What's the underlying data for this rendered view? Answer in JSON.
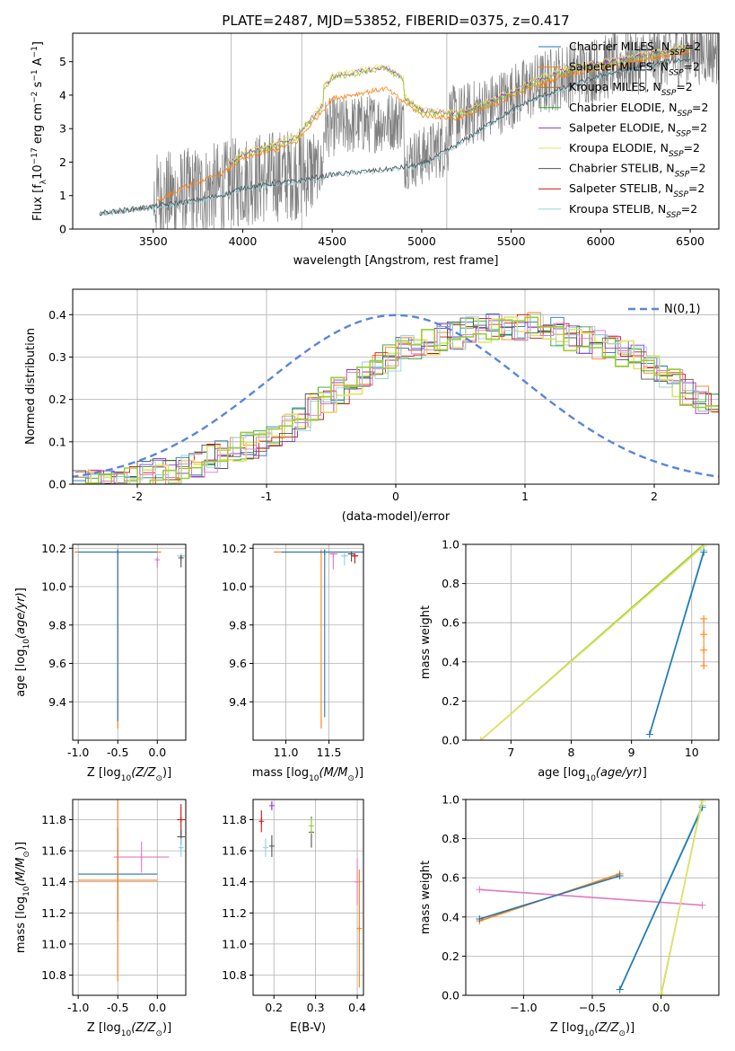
{
  "figure": {
    "title": "PLATE=2487, MJD=53852, FIBERID=0375, z=0.417"
  },
  "series_names": [
    "Chabrier MILES",
    "Salpeter MILES",
    "Kroupa MILES",
    "Chabrier ELODIE",
    "Salpeter ELODIE",
    "Kroupa ELODIE",
    "Chabrier STELIB",
    "Salpeter STELIB",
    "Kroupa STELIB"
  ],
  "series_colors": [
    "#1f77b4",
    "#ff7f0e",
    "#bf6f1f",
    "#2ca02c",
    "#9932cc",
    "#e2e26a",
    "#555555",
    "#c81414",
    "#8fd3e0"
  ],
  "legend_suffix": "N",
  "legend_sub": "SSP",
  "legend_value": "=2",
  "chart_data": [
    {
      "type": "line",
      "panel": "spectrum",
      "title": "PLATE=2487, MJD=53852, FIBERID=0375, z=0.417",
      "xlabel": "wavelength [Angstrom, rest frame]",
      "ylabel_main": "Flux [f",
      "ylabel_rest": "10",
      "ylabel_units": "erg cm",
      "xlim": [
        3050,
        6660
      ],
      "ylim": [
        0,
        5.85
      ],
      "xticks": [
        3500,
        4000,
        4500,
        5000,
        5500,
        6000,
        6500
      ],
      "yticks": [
        0,
        1,
        2,
        3,
        4,
        5
      ],
      "data_color": "#808080",
      "model_levels": {
        "x": [
          3200,
          3500,
          3700,
          3900,
          4000,
          4200,
          4300,
          4500,
          4800,
          5000,
          5200,
          5400,
          5600,
          5800,
          6000,
          6200,
          6400,
          6500
        ],
        "smooth": [
          0.45,
          0.65,
          0.8,
          1.0,
          1.2,
          1.35,
          1.4,
          1.6,
          1.75,
          1.9,
          2.5,
          3.2,
          3.8,
          4.2,
          4.55,
          4.8,
          5.0,
          5.05
        ],
        "old": [
          null,
          0.8,
          1.3,
          1.7,
          2.1,
          2.4,
          2.6,
          3.9,
          4.2,
          3.4,
          3.3,
          3.7,
          4.2,
          4.6,
          4.8,
          5.0,
          5.2,
          5.3
        ]
      },
      "legend_position": "top-right"
    },
    {
      "type": "step",
      "panel": "residuals",
      "xlabel": "(data-model)/error",
      "ylabel": "Normed distribution",
      "xlim": [
        -2.5,
        2.5
      ],
      "ylim": [
        0,
        0.46
      ],
      "xticks": [
        -2,
        -1,
        0,
        1,
        2
      ],
      "yticks": [
        0.0,
        0.1,
        0.2,
        0.3,
        0.4
      ],
      "gaussian_label": "N(0,1)",
      "legend_position": "top-right",
      "bin_start": -2.5,
      "bin_width": 0.1,
      "profile": [
        0.0,
        0.0,
        0.01,
        0.01,
        0.02,
        0.02,
        0.03,
        0.03,
        0.04,
        0.05,
        0.06,
        0.07,
        0.08,
        0.09,
        0.1,
        0.11,
        0.13,
        0.16,
        0.18,
        0.2,
        0.22,
        0.24,
        0.26,
        0.28,
        0.3,
        0.32,
        0.33,
        0.34,
        0.35,
        0.35,
        0.36,
        0.36,
        0.37,
        0.37,
        0.37,
        0.37,
        0.36,
        0.36,
        0.35,
        0.34,
        0.33,
        0.32,
        0.31,
        0.3,
        0.28,
        0.26,
        0.24,
        0.22,
        0.2,
        0.18
      ]
    },
    {
      "type": "errorbar",
      "panel": "age-vs-Z",
      "xlabel": "Z [log",
      "ylabel": "age  [log",
      "xlim": [
        -1.07,
        0.36
      ],
      "ylim": [
        9.2,
        10.22
      ],
      "xticks": [
        -1.0,
        -0.5,
        0.0
      ],
      "yticks": [
        9.4,
        9.6,
        9.8,
        10.0,
        10.2
      ],
      "points": [
        {
          "x": -0.5,
          "y": 10.18,
          "xerr": 0.55,
          "yerr_low": 0.92,
          "color": "#ff7f0e"
        },
        {
          "x": -0.5,
          "y": 10.18,
          "xerr": 0.5,
          "yerr_low": 0.88,
          "color": "#1f77b4"
        },
        {
          "x": 0.0,
          "y": 10.14,
          "xerr": 0.02,
          "yerr_low": 0.04,
          "color": "#e377c2"
        },
        {
          "x": 0.3,
          "y": 10.16,
          "xerr": 0.05,
          "yerr_low": 0.04,
          "color": "#8fd3e0"
        },
        {
          "x": 0.3,
          "y": 10.15,
          "xerr": 0.03,
          "yerr_low": 0.05,
          "color": "#555555"
        }
      ]
    },
    {
      "type": "errorbar",
      "panel": "age-vs-mass",
      "xlabel": "mass [log",
      "xlim": [
        10.62,
        11.9
      ],
      "ylim": [
        9.2,
        10.22
      ],
      "xticks": [
        11.0,
        11.5
      ],
      "yticks": [
        9.4,
        9.6,
        9.8,
        10.0,
        10.2
      ],
      "points": [
        {
          "x": 11.41,
          "y": 10.18,
          "xerr": 0.55,
          "yerr_low": 0.92,
          "color": "#ff7f0e"
        },
        {
          "x": 11.45,
          "y": 10.18,
          "xerr": 0.5,
          "yerr_low": 0.86,
          "color": "#1f77b4"
        },
        {
          "x": 11.55,
          "y": 10.17,
          "xerr": 0.05,
          "yerr_low": 0.08,
          "color": "#e377c2"
        },
        {
          "x": 11.68,
          "y": 10.16,
          "xerr": 0.04,
          "yerr_low": 0.05,
          "color": "#8fd3e0"
        },
        {
          "x": 11.8,
          "y": 10.16,
          "xerr": 0.04,
          "yerr_low": 0.04,
          "color": "#c81414"
        },
        {
          "x": 11.76,
          "y": 10.17,
          "xerr": 0.04,
          "yerr_low": 0.04,
          "color": "#555555"
        }
      ]
    },
    {
      "type": "line",
      "panel": "weight-vs-age",
      "xlabel": "age  [log",
      "ylabel": "mass weight",
      "xlim": [
        6.25,
        10.45
      ],
      "ylim": [
        0,
        1.0
      ],
      "xticks": [
        7,
        8,
        9,
        10
      ],
      "yticks": [
        0.0,
        0.2,
        0.4,
        0.6,
        0.8,
        1.0
      ],
      "lines": [
        {
          "x": [
            6.5,
            10.2
          ],
          "y": [
            0.0,
            1.0
          ],
          "color": "#9acd32"
        },
        {
          "x": [
            6.5,
            10.2
          ],
          "y": [
            0.0,
            0.99
          ],
          "color": "#e2e26a"
        },
        {
          "x": [
            9.3,
            10.2
          ],
          "y": [
            0.03,
            0.97
          ],
          "color": "#8fd3e0"
        },
        {
          "x": [
            9.3,
            10.2
          ],
          "y": [
            0.03,
            0.96
          ],
          "color": "#1f77b4"
        }
      ],
      "markers": [
        {
          "x": 10.2,
          "y": 0.62,
          "color": "#ff7f0e"
        },
        {
          "x": 10.2,
          "y": 0.54,
          "color": "#ff7f0e"
        },
        {
          "x": 10.2,
          "y": 0.46,
          "color": "#ff7f0e"
        },
        {
          "x": 10.2,
          "y": 0.38,
          "color": "#ff7f0e"
        }
      ]
    },
    {
      "type": "errorbar",
      "panel": "mass-vs-Z",
      "xlabel": "Z [log",
      "ylabel": "mass [log",
      "xlim": [
        -1.07,
        0.36
      ],
      "ylim": [
        10.67,
        11.93
      ],
      "xticks": [
        -1.0,
        -0.5,
        0.0
      ],
      "yticks": [
        10.8,
        11.0,
        11.2,
        11.4,
        11.6,
        11.8
      ],
      "points": [
        {
          "x": -0.5,
          "y": 11.45,
          "xerr": 0.5,
          "yerr": 0.3,
          "color": "#1f77b4"
        },
        {
          "x": -0.5,
          "y": 11.41,
          "xerr": 0.5,
          "yerr": 0.65,
          "color": "#ff7f0e"
        },
        {
          "x": -0.2,
          "y": 11.56,
          "xerr": 0.35,
          "yerr": 0.1,
          "color": "#e377c2"
        },
        {
          "x": 0.3,
          "y": 11.8,
          "xerr": 0.05,
          "yerr": 0.1,
          "color": "#c81414"
        },
        {
          "x": 0.3,
          "y": 11.69,
          "xerr": 0.05,
          "yerr": 0.05,
          "color": "#555555"
        },
        {
          "x": 0.3,
          "y": 11.62,
          "xerr": 0.02,
          "yerr": 0.06,
          "color": "#8fd3e0"
        }
      ]
    },
    {
      "type": "errorbar",
      "panel": "mass-vs-EBV",
      "xlabel": "E(B-V)",
      "xlim": [
        0.15,
        0.415
      ],
      "ylim": [
        10.67,
        11.93
      ],
      "xticks": [
        0.2,
        0.3,
        0.4
      ],
      "yticks": [
        10.8,
        11.0,
        11.2,
        11.4,
        11.6,
        11.8
      ],
      "points": [
        {
          "x": 0.17,
          "y": 11.79,
          "yerr": 0.07,
          "color": "#c81414"
        },
        {
          "x": 0.18,
          "y": 11.62,
          "yerr": 0.06,
          "color": "#8fd3e0"
        },
        {
          "x": 0.195,
          "y": 11.63,
          "yerr": 0.07,
          "color": "#555555"
        },
        {
          "x": 0.195,
          "y": 11.89,
          "yerr": 0.03,
          "color": "#9932cc"
        },
        {
          "x": 0.29,
          "y": 11.72,
          "yerr": 0.1,
          "color": "#555555"
        },
        {
          "x": 0.29,
          "y": 11.76,
          "yerr": 0.05,
          "color": "#9acd32"
        },
        {
          "x": 0.4,
          "y": 11.4,
          "yerr": 0.15,
          "color": "#e377c2"
        },
        {
          "x": 0.405,
          "y": 11.1,
          "yerr": 0.38,
          "color": "#ff7f0e"
        }
      ]
    },
    {
      "type": "line",
      "panel": "weight-vs-Z",
      "xlabel": "Z [log",
      "ylabel": "mass weight",
      "xlim": [
        -1.42,
        0.42
      ],
      "ylim": [
        0,
        1.0
      ],
      "xticks": [
        -1.0,
        -0.5,
        0.0
      ],
      "yticks": [
        0.0,
        0.2,
        0.4,
        0.6,
        0.8,
        1.0
      ],
      "lines": [
        {
          "x": [
            -1.32,
            0.3
          ],
          "y": [
            0.54,
            0.46
          ],
          "color": "#e377c2"
        },
        {
          "x": [
            -1.32,
            -0.3
          ],
          "y": [
            0.38,
            0.62
          ],
          "color": "#ff7f0e"
        },
        {
          "x": [
            -1.32,
            -0.3
          ],
          "y": [
            0.39,
            0.61
          ],
          "color": "#1f77b4"
        },
        {
          "x": [
            -0.3,
            0.3
          ],
          "y": [
            0.03,
            0.97
          ],
          "color": "#8fd3e0"
        },
        {
          "x": [
            -0.3,
            0.3
          ],
          "y": [
            0.03,
            0.96
          ],
          "color": "#1f77b4"
        },
        {
          "x": [
            0.0,
            0.3
          ],
          "y": [
            0.0,
            1.0
          ],
          "color": "#9acd32"
        },
        {
          "x": [
            0.0,
            0.3
          ],
          "y": [
            0.01,
            0.99
          ],
          "color": "#e2e26a"
        }
      ]
    }
  ]
}
